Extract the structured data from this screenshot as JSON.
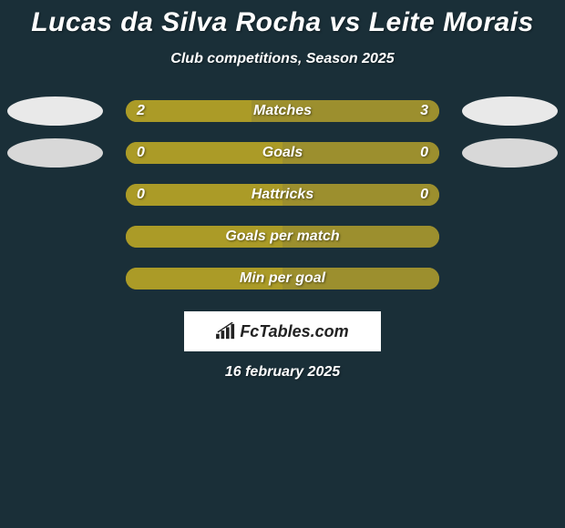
{
  "title": "Lucas da Silva Rocha vs Leite Morais",
  "subtitle": "Club competitions, Season 2025",
  "date": "16 february 2025",
  "branding": "FcTables.com",
  "colors": {
    "background": "#1a2f38",
    "player1_fill": "#ab9b27",
    "player2_fill": "#9c8f2e",
    "track": "#ab9b27",
    "ellipse1": "#e9e9e9",
    "ellipse2": "#d8d8d8"
  },
  "stats": [
    {
      "label": "Matches",
      "left_val": "2",
      "right_val": "3",
      "left_pct": 40,
      "right_pct": 60,
      "show_ellipses": true,
      "ellipse_shade": 1
    },
    {
      "label": "Goals",
      "left_val": "0",
      "right_val": "0",
      "left_pct": 50,
      "right_pct": 50,
      "show_ellipses": true,
      "ellipse_shade": 2
    },
    {
      "label": "Hattricks",
      "left_val": "0",
      "right_val": "0",
      "left_pct": 50,
      "right_pct": 50,
      "show_ellipses": false
    },
    {
      "label": "Goals per match",
      "left_val": "",
      "right_val": "",
      "left_pct": 50,
      "right_pct": 50,
      "show_ellipses": false
    },
    {
      "label": "Min per goal",
      "left_val": "",
      "right_val": "",
      "left_pct": 50,
      "right_pct": 50,
      "show_ellipses": false
    }
  ]
}
